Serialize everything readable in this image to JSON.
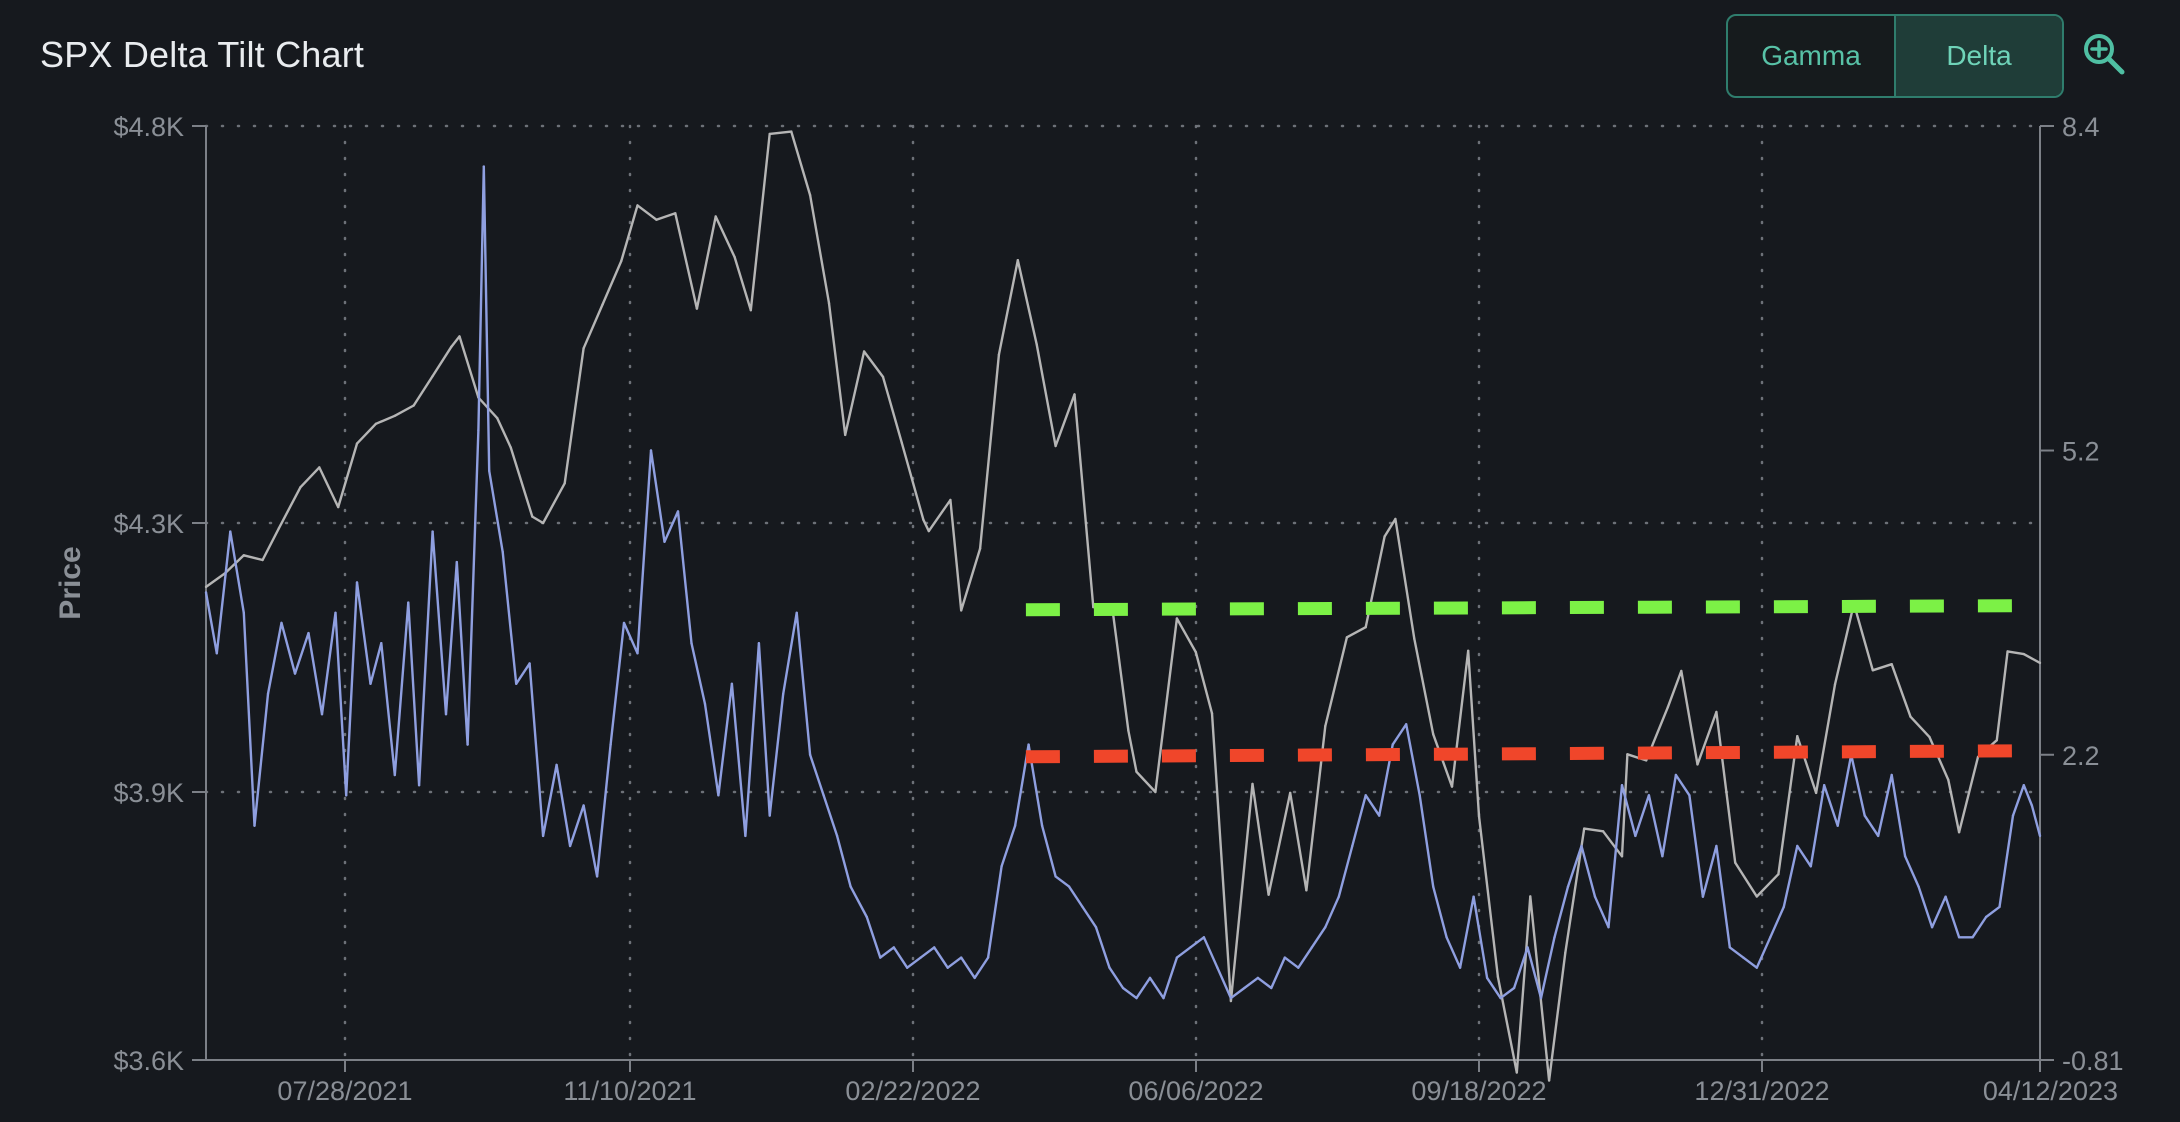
{
  "header": {
    "title": "SPX Delta Tilt Chart",
    "toggle": {
      "gamma_label": "Gamma",
      "delta_label": "Delta",
      "selected": "Delta"
    }
  },
  "icons": {
    "zoom": "zoom-in-magnifier-icon"
  },
  "colors": {
    "background": "#16191e",
    "price_line": "#b5b5b5",
    "tilt_line": "#8f9fe0",
    "upper_level": "#7cf146",
    "lower_level": "#f0462a",
    "accent": "#58c2a7"
  },
  "chart_data": {
    "type": "line",
    "title": "SPX Delta Tilt Chart",
    "xlabel": "",
    "ylabel": "Price",
    "y_left": {
      "ticks": [
        "$4.8K",
        "$4.3K",
        "$3.9K",
        "$3.6K"
      ],
      "tick_values": [
        4800,
        4300,
        3900,
        3600
      ],
      "range": [
        3600,
        4800
      ],
      "scale": "log"
    },
    "y_right": {
      "ticks": [
        "8.4",
        "5.2",
        "2.2",
        "-0.81"
      ],
      "tick_values": [
        8.4,
        5.2,
        2.2,
        -0.81
      ],
      "range": [
        -0.81,
        8.4
      ]
    },
    "x_ticks": [
      "07/28/2021",
      "11/10/2021",
      "02/22/2022",
      "06/06/2022",
      "09/18/2022",
      "12/31/2022",
      "04/12/2023"
    ],
    "x_range": [
      "2021-06-01",
      "2023-04-12"
    ],
    "grid": "dotted",
    "series": [
      {
        "type": "line",
        "axis": "left",
        "points": [
          [
            "2021-06-01",
            4205
          ],
          [
            "2021-06-08",
            4225
          ],
          [
            "2021-06-15",
            4252
          ],
          [
            "2021-06-22",
            4245
          ],
          [
            "2021-06-28",
            4292
          ],
          [
            "2021-07-06",
            4345
          ],
          [
            "2021-07-13",
            4370
          ],
          [
            "2021-07-20",
            4320
          ],
          [
            "2021-07-27",
            4400
          ],
          [
            "2021-08-03",
            4425
          ],
          [
            "2021-08-10",
            4435
          ],
          [
            "2021-08-17",
            4448
          ],
          [
            "2021-08-24",
            4485
          ],
          [
            "2021-08-31",
            4522
          ],
          [
            "2021-09-03",
            4535
          ],
          [
            "2021-09-10",
            4458
          ],
          [
            "2021-09-17",
            4432
          ],
          [
            "2021-09-22",
            4395
          ],
          [
            "2021-09-30",
            4308
          ],
          [
            "2021-10-04",
            4300
          ],
          [
            "2021-10-12",
            4350
          ],
          [
            "2021-10-19",
            4520
          ],
          [
            "2021-10-26",
            4575
          ],
          [
            "2021-11-02",
            4630
          ],
          [
            "2021-11-08",
            4700
          ],
          [
            "2021-11-15",
            4682
          ],
          [
            "2021-11-22",
            4690
          ],
          [
            "2021-11-30",
            4570
          ],
          [
            "2021-12-07",
            4686
          ],
          [
            "2021-12-14",
            4635
          ],
          [
            "2021-12-20",
            4568
          ],
          [
            "2021-12-27",
            4790
          ],
          [
            "2022-01-04",
            4793
          ],
          [
            "2022-01-11",
            4713
          ],
          [
            "2022-01-18",
            4577
          ],
          [
            "2022-01-24",
            4411
          ],
          [
            "2022-01-31",
            4516
          ],
          [
            "2022-02-07",
            4484
          ],
          [
            "2022-02-14",
            4401
          ],
          [
            "2022-02-22",
            4304
          ],
          [
            "2022-02-24",
            4288
          ],
          [
            "2022-03-04",
            4329
          ],
          [
            "2022-03-08",
            4170
          ],
          [
            "2022-03-15",
            4262
          ],
          [
            "2022-03-22",
            4512
          ],
          [
            "2022-03-29",
            4631
          ],
          [
            "2022-04-05",
            4525
          ],
          [
            "2022-04-12",
            4397
          ],
          [
            "2022-04-19",
            4462
          ],
          [
            "2022-04-26",
            4175
          ],
          [
            "2022-05-03",
            4175
          ],
          [
            "2022-05-09",
            3991
          ],
          [
            "2022-05-12",
            3930
          ],
          [
            "2022-05-19",
            3900
          ],
          [
            "2022-05-27",
            4158
          ],
          [
            "2022-06-03",
            4108
          ],
          [
            "2022-06-09",
            4017
          ],
          [
            "2022-06-16",
            3666
          ],
          [
            "2022-06-24",
            3912
          ],
          [
            "2022-06-30",
            3785
          ],
          [
            "2022-07-08",
            3899
          ],
          [
            "2022-07-14",
            3790
          ],
          [
            "2022-07-21",
            3998
          ],
          [
            "2022-07-29",
            4130
          ],
          [
            "2022-08-05",
            4145
          ],
          [
            "2022-08-12",
            4280
          ],
          [
            "2022-08-16",
            4305
          ],
          [
            "2022-08-23",
            4128
          ],
          [
            "2022-08-30",
            3986
          ],
          [
            "2022-09-06",
            3908
          ],
          [
            "2022-09-12",
            4110
          ],
          [
            "2022-09-16",
            3873
          ],
          [
            "2022-09-23",
            3693
          ],
          [
            "2022-09-30",
            3586
          ],
          [
            "2022-10-05",
            3783
          ],
          [
            "2022-10-12",
            3577
          ],
          [
            "2022-10-18",
            3720
          ],
          [
            "2022-10-25",
            3859
          ],
          [
            "2022-11-01",
            3856
          ],
          [
            "2022-11-08",
            3828
          ],
          [
            "2022-11-10",
            3956
          ],
          [
            "2022-11-17",
            3947
          ],
          [
            "2022-11-25",
            4026
          ],
          [
            "2022-11-30",
            4080
          ],
          [
            "2022-12-06",
            3941
          ],
          [
            "2022-12-13",
            4019
          ],
          [
            "2022-12-20",
            3821
          ],
          [
            "2022-12-28",
            3783
          ],
          [
            "2023-01-05",
            3808
          ],
          [
            "2023-01-12",
            3983
          ],
          [
            "2023-01-19",
            3899
          ],
          [
            "2023-01-26",
            4060
          ],
          [
            "2023-02-02",
            4180
          ],
          [
            "2023-02-09",
            4081
          ],
          [
            "2023-02-16",
            4090
          ],
          [
            "2023-02-23",
            4012
          ],
          [
            "2023-03-02",
            3982
          ],
          [
            "2023-03-09",
            3918
          ],
          [
            "2023-03-13",
            3855
          ],
          [
            "2023-03-20",
            3952
          ],
          [
            "2023-03-27",
            3977
          ],
          [
            "2023-03-31",
            4109
          ],
          [
            "2023-04-06",
            4105
          ],
          [
            "2023-04-12",
            4092
          ]
        ]
      },
      {
        "type": "line",
        "axis": "right",
        "points": [
          [
            "2021-06-01",
            3.8
          ],
          [
            "2021-06-05",
            3.2
          ],
          [
            "2021-06-10",
            4.4
          ],
          [
            "2021-06-15",
            3.6
          ],
          [
            "2021-06-19",
            1.5
          ],
          [
            "2021-06-24",
            2.8
          ],
          [
            "2021-06-29",
            3.5
          ],
          [
            "2021-07-04",
            3.0
          ],
          [
            "2021-07-09",
            3.4
          ],
          [
            "2021-07-14",
            2.6
          ],
          [
            "2021-07-19",
            3.6
          ],
          [
            "2021-07-23",
            1.8
          ],
          [
            "2021-07-27",
            3.9
          ],
          [
            "2021-08-01",
            2.9
          ],
          [
            "2021-08-05",
            3.3
          ],
          [
            "2021-08-10",
            2.0
          ],
          [
            "2021-08-15",
            3.7
          ],
          [
            "2021-08-19",
            1.9
          ],
          [
            "2021-08-24",
            4.4
          ],
          [
            "2021-08-29",
            2.6
          ],
          [
            "2021-09-02",
            4.1
          ],
          [
            "2021-09-06",
            2.3
          ],
          [
            "2021-09-10",
            5.4
          ],
          [
            "2021-09-12",
            8.0
          ],
          [
            "2021-09-14",
            5.0
          ],
          [
            "2021-09-19",
            4.2
          ],
          [
            "2021-09-24",
            2.9
          ],
          [
            "2021-09-29",
            3.1
          ],
          [
            "2021-10-04",
            1.4
          ],
          [
            "2021-10-09",
            2.1
          ],
          [
            "2021-10-14",
            1.3
          ],
          [
            "2021-10-19",
            1.7
          ],
          [
            "2021-10-24",
            1.0
          ],
          [
            "2021-10-29",
            2.3
          ],
          [
            "2021-11-03",
            3.5
          ],
          [
            "2021-11-08",
            3.2
          ],
          [
            "2021-11-13",
            5.2
          ],
          [
            "2021-11-18",
            4.3
          ],
          [
            "2021-11-23",
            4.6
          ],
          [
            "2021-11-28",
            3.3
          ],
          [
            "2021-12-03",
            2.7
          ],
          [
            "2021-12-08",
            1.8
          ],
          [
            "2021-12-13",
            2.9
          ],
          [
            "2021-12-18",
            1.4
          ],
          [
            "2021-12-23",
            3.3
          ],
          [
            "2021-12-27",
            1.6
          ],
          [
            "2022-01-01",
            2.8
          ],
          [
            "2022-01-06",
            3.6
          ],
          [
            "2022-01-11",
            2.2
          ],
          [
            "2022-01-16",
            1.8
          ],
          [
            "2022-01-21",
            1.4
          ],
          [
            "2022-01-26",
            0.9
          ],
          [
            "2022-02-01",
            0.6
          ],
          [
            "2022-02-06",
            0.2
          ],
          [
            "2022-02-11",
            0.3
          ],
          [
            "2022-02-16",
            0.1
          ],
          [
            "2022-02-21",
            0.2
          ],
          [
            "2022-02-26",
            0.3
          ],
          [
            "2022-03-03",
            0.1
          ],
          [
            "2022-03-08",
            0.2
          ],
          [
            "2022-03-13",
            0.0
          ],
          [
            "2022-03-18",
            0.2
          ],
          [
            "2022-03-23",
            1.1
          ],
          [
            "2022-03-28",
            1.5
          ],
          [
            "2022-04-02",
            2.3
          ],
          [
            "2022-04-07",
            1.5
          ],
          [
            "2022-04-12",
            1.0
          ],
          [
            "2022-04-17",
            0.9
          ],
          [
            "2022-04-22",
            0.7
          ],
          [
            "2022-04-27",
            0.5
          ],
          [
            "2022-05-02",
            0.1
          ],
          [
            "2022-05-07",
            -0.1
          ],
          [
            "2022-05-12",
            -0.2
          ],
          [
            "2022-05-17",
            0.0
          ],
          [
            "2022-05-22",
            -0.2
          ],
          [
            "2022-05-27",
            0.2
          ],
          [
            "2022-06-01",
            0.3
          ],
          [
            "2022-06-06",
            0.4
          ],
          [
            "2022-06-11",
            0.1
          ],
          [
            "2022-06-16",
            -0.2
          ],
          [
            "2022-06-21",
            -0.1
          ],
          [
            "2022-06-26",
            0.0
          ],
          [
            "2022-07-01",
            -0.1
          ],
          [
            "2022-07-06",
            0.2
          ],
          [
            "2022-07-11",
            0.1
          ],
          [
            "2022-07-16",
            0.3
          ],
          [
            "2022-07-21",
            0.5
          ],
          [
            "2022-07-26",
            0.8
          ],
          [
            "2022-07-31",
            1.3
          ],
          [
            "2022-08-05",
            1.8
          ],
          [
            "2022-08-10",
            1.6
          ],
          [
            "2022-08-15",
            2.3
          ],
          [
            "2022-08-20",
            2.5
          ],
          [
            "2022-08-25",
            1.8
          ],
          [
            "2022-08-30",
            0.9
          ],
          [
            "2022-09-04",
            0.4
          ],
          [
            "2022-09-09",
            0.1
          ],
          [
            "2022-09-14",
            0.8
          ],
          [
            "2022-09-19",
            0.0
          ],
          [
            "2022-09-24",
            -0.2
          ],
          [
            "2022-09-29",
            -0.1
          ],
          [
            "2022-10-04",
            0.3
          ],
          [
            "2022-10-09",
            -0.2
          ],
          [
            "2022-10-14",
            0.4
          ],
          [
            "2022-10-19",
            0.9
          ],
          [
            "2022-10-24",
            1.3
          ],
          [
            "2022-10-29",
            0.8
          ],
          [
            "2022-11-03",
            0.5
          ],
          [
            "2022-11-08",
            1.9
          ],
          [
            "2022-11-13",
            1.4
          ],
          [
            "2022-11-18",
            1.8
          ],
          [
            "2022-11-23",
            1.2
          ],
          [
            "2022-11-28",
            2.0
          ],
          [
            "2022-12-03",
            1.8
          ],
          [
            "2022-12-08",
            0.8
          ],
          [
            "2022-12-13",
            1.3
          ],
          [
            "2022-12-18",
            0.3
          ],
          [
            "2022-12-23",
            0.2
          ],
          [
            "2022-12-28",
            0.1
          ],
          [
            "2023-01-02",
            0.4
          ],
          [
            "2023-01-07",
            0.7
          ],
          [
            "2023-01-12",
            1.3
          ],
          [
            "2023-01-17",
            1.1
          ],
          [
            "2023-01-22",
            1.9
          ],
          [
            "2023-01-27",
            1.5
          ],
          [
            "2023-02-01",
            2.2
          ],
          [
            "2023-02-06",
            1.6
          ],
          [
            "2023-02-11",
            1.4
          ],
          [
            "2023-02-16",
            2.0
          ],
          [
            "2023-02-21",
            1.2
          ],
          [
            "2023-02-26",
            0.9
          ],
          [
            "2023-03-03",
            0.5
          ],
          [
            "2023-03-08",
            0.8
          ],
          [
            "2023-03-13",
            0.4
          ],
          [
            "2023-03-18",
            0.4
          ],
          [
            "2023-03-23",
            0.6
          ],
          [
            "2023-03-28",
            0.7
          ],
          [
            "2023-04-02",
            1.6
          ],
          [
            "2023-04-06",
            1.9
          ],
          [
            "2023-04-09",
            1.7
          ],
          [
            "2023-04-12",
            1.4
          ]
        ]
      }
    ],
    "reference_lines": [
      {
        "axis": "right",
        "style": "dashed",
        "color": "#7cf146",
        "x_start": "2022-04-01",
        "x_end": "2023-04-09",
        "y_start": 3.63,
        "y_end": 3.67
      },
      {
        "axis": "right",
        "style": "dashed",
        "color": "#f0462a",
        "x_start": "2022-04-01",
        "x_end": "2023-04-09",
        "y_start": 2.18,
        "y_end": 2.24
      }
    ]
  }
}
